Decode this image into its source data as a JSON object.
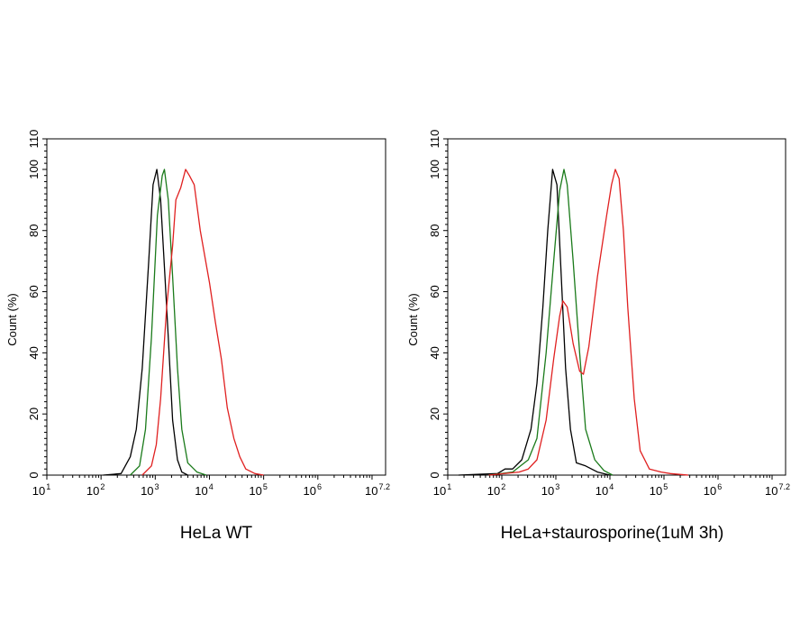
{
  "chart_data": [
    {
      "type": "line",
      "title": "HeLa WT",
      "xlabel": "",
      "ylabel": "Count  (%)",
      "x_scale": "log10",
      "xlim": [
        1,
        7.25
      ],
      "ylim": [
        0,
        110
      ],
      "x_ticks": [
        {
          "base": "10",
          "exp": "1",
          "v": 1
        },
        {
          "base": "10",
          "exp": "2",
          "v": 2
        },
        {
          "base": "10",
          "exp": "3",
          "v": 3
        },
        {
          "base": "10",
          "exp": "4",
          "v": 4
        },
        {
          "base": "10",
          "exp": "5",
          "v": 5
        },
        {
          "base": "10",
          "exp": "6",
          "v": 6
        },
        {
          "base": "10",
          "exp": "7.2",
          "v": 7.2
        }
      ],
      "y_ticks": [
        0,
        20,
        40,
        60,
        80,
        100,
        110
      ],
      "grid": false,
      "series": [
        {
          "color": "#000000",
          "points": [
            [
              2.04,
              0
            ],
            [
              2.37,
              0.5
            ],
            [
              2.54,
              6
            ],
            [
              2.65,
              15
            ],
            [
              2.76,
              35
            ],
            [
              2.88,
              70
            ],
            [
              2.96,
              95
            ],
            [
              3.03,
              100
            ],
            [
              3.1,
              90
            ],
            [
              3.18,
              65
            ],
            [
              3.24,
              45
            ],
            [
              3.32,
              18
            ],
            [
              3.41,
              5
            ],
            [
              3.49,
              1
            ],
            [
              3.6,
              0
            ]
          ]
        },
        {
          "color": "#1a7a1a",
          "points": [
            [
              2.54,
              0
            ],
            [
              2.71,
              3
            ],
            [
              2.82,
              15
            ],
            [
              2.93,
              45
            ],
            [
              3.04,
              85
            ],
            [
              3.13,
              98
            ],
            [
              3.17,
              100
            ],
            [
              3.24,
              90
            ],
            [
              3.32,
              65
            ],
            [
              3.41,
              35
            ],
            [
              3.49,
              15
            ],
            [
              3.6,
              4
            ],
            [
              3.77,
              1
            ],
            [
              3.94,
              0
            ]
          ]
        },
        {
          "color": "#e02020",
          "points": [
            [
              2.76,
              0
            ],
            [
              2.93,
              3
            ],
            [
              3.02,
              10
            ],
            [
              3.1,
              25
            ],
            [
              3.21,
              55
            ],
            [
              3.32,
              75
            ],
            [
              3.38,
              90
            ],
            [
              3.47,
              94
            ],
            [
              3.56,
              100
            ],
            [
              3.63,
              98
            ],
            [
              3.72,
              95
            ],
            [
              3.83,
              80
            ],
            [
              4.0,
              63
            ],
            [
              4.11,
              50
            ],
            [
              4.22,
              38
            ],
            [
              4.33,
              22
            ],
            [
              4.45,
              12
            ],
            [
              4.56,
              6
            ],
            [
              4.67,
              2
            ],
            [
              4.84,
              0.5
            ],
            [
              5.0,
              0
            ]
          ]
        }
      ]
    },
    {
      "type": "line",
      "title": "HeLa+staurosporine(1uM 3h)",
      "xlabel": "",
      "ylabel": "Count  (%)",
      "x_scale": "log10",
      "xlim": [
        1,
        7.25
      ],
      "ylim": [
        0,
        110
      ],
      "x_ticks": [
        {
          "base": "10",
          "exp": "1",
          "v": 1
        },
        {
          "base": "10",
          "exp": "2",
          "v": 2
        },
        {
          "base": "10",
          "exp": "3",
          "v": 3
        },
        {
          "base": "10",
          "exp": "4",
          "v": 4
        },
        {
          "base": "10",
          "exp": "5",
          "v": 5
        },
        {
          "base": "10",
          "exp": "6",
          "v": 6
        },
        {
          "base": "10",
          "exp": "7.2",
          "v": 7.2
        }
      ],
      "y_ticks": [
        0,
        20,
        40,
        60,
        80,
        100,
        110
      ],
      "grid": false,
      "series": [
        {
          "color": "#000000",
          "points": [
            [
              1.2,
              0
            ],
            [
              1.59,
              0.3
            ],
            [
              1.92,
              0.5
            ],
            [
              2.06,
              2
            ],
            [
              2.2,
              2
            ],
            [
              2.37,
              5
            ],
            [
              2.54,
              15
            ],
            [
              2.65,
              30
            ],
            [
              2.76,
              55
            ],
            [
              2.85,
              80
            ],
            [
              2.94,
              100
            ],
            [
              3.02,
              95
            ],
            [
              3.1,
              65
            ],
            [
              3.18,
              35
            ],
            [
              3.27,
              15
            ],
            [
              3.38,
              4
            ],
            [
              3.55,
              3
            ],
            [
              3.66,
              2
            ],
            [
              3.77,
              1
            ],
            [
              4.0,
              0
            ]
          ]
        },
        {
          "color": "#1a7a1a",
          "points": [
            [
              1.76,
              0
            ],
            [
              2.2,
              1
            ],
            [
              2.49,
              5
            ],
            [
              2.65,
              12
            ],
            [
              2.82,
              40
            ],
            [
              2.96,
              70
            ],
            [
              3.07,
              93
            ],
            [
              3.15,
              100
            ],
            [
              3.21,
              95
            ],
            [
              3.32,
              70
            ],
            [
              3.44,
              40
            ],
            [
              3.55,
              15
            ],
            [
              3.72,
              5
            ],
            [
              3.89,
              1.5
            ],
            [
              4.05,
              0
            ]
          ]
        },
        {
          "color": "#e02020",
          "points": [
            [
              1.76,
              0
            ],
            [
              2.32,
              1
            ],
            [
              2.49,
              2
            ],
            [
              2.65,
              5
            ],
            [
              2.82,
              18
            ],
            [
              2.96,
              38
            ],
            [
              3.07,
              52
            ],
            [
              3.13,
              57
            ],
            [
              3.21,
              55
            ],
            [
              3.32,
              43
            ],
            [
              3.44,
              34
            ],
            [
              3.51,
              33
            ],
            [
              3.61,
              42
            ],
            [
              3.77,
              65
            ],
            [
              3.94,
              85
            ],
            [
              4.03,
              95
            ],
            [
              4.1,
              100
            ],
            [
              4.17,
              97
            ],
            [
              4.25,
              80
            ],
            [
              4.33,
              55
            ],
            [
              4.45,
              25
            ],
            [
              4.56,
              8
            ],
            [
              4.73,
              2
            ],
            [
              4.95,
              1
            ],
            [
              5.12,
              0.5
            ],
            [
              5.45,
              0
            ]
          ]
        }
      ]
    }
  ]
}
